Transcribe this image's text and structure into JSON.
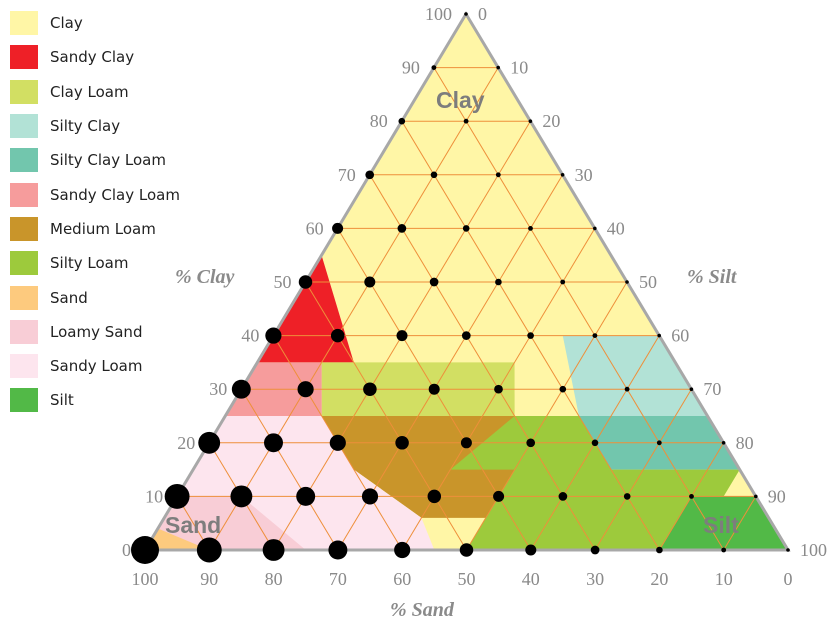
{
  "legend": [
    {
      "label": "Clay",
      "color": "#fff6a6"
    },
    {
      "label": "Sandy Clay",
      "color": "#ee2027"
    },
    {
      "label": "Clay Loam",
      "color": "#d2df63"
    },
    {
      "label": "Silty Clay",
      "color": "#b2e2d6"
    },
    {
      "label": "Silty Clay Loam",
      "color": "#72c6ad"
    },
    {
      "label": "Sandy Clay Loam",
      "color": "#f69c9c"
    },
    {
      "label": "Medium Loam",
      "color": "#c9952a"
    },
    {
      "label": "Silty Loam",
      "color": "#9dca3c"
    },
    {
      "label": "Sand",
      "color": "#fdca7e"
    },
    {
      "label": "Loamy Sand",
      "color": "#f8cdd6"
    },
    {
      "label": "Sandy Loam",
      "color": "#fde5ee"
    },
    {
      "label": "Silt",
      "color": "#52b947"
    }
  ],
  "axes": {
    "clay_title": "% Clay",
    "silt_title": "% Silt",
    "sand_title": "% Sand",
    "clay_ticks": [
      "0",
      "10",
      "20",
      "30",
      "40",
      "50",
      "60",
      "70",
      "80",
      "90",
      "100"
    ],
    "silt_ticks": [
      "0",
      "10",
      "20",
      "30",
      "40",
      "50",
      "60",
      "70",
      "80",
      "90",
      "100"
    ],
    "sand_ticks": [
      "100",
      "90",
      "80",
      "70",
      "60",
      "50",
      "40",
      "30",
      "20",
      "10",
      "0"
    ]
  },
  "region_labels": {
    "clay": "Clay",
    "sand": "Sand",
    "silt": "Silt"
  },
  "colors": {
    "grid": "#ee8f3a",
    "frame": "#a8a8a8",
    "dot": "#000000"
  }
}
